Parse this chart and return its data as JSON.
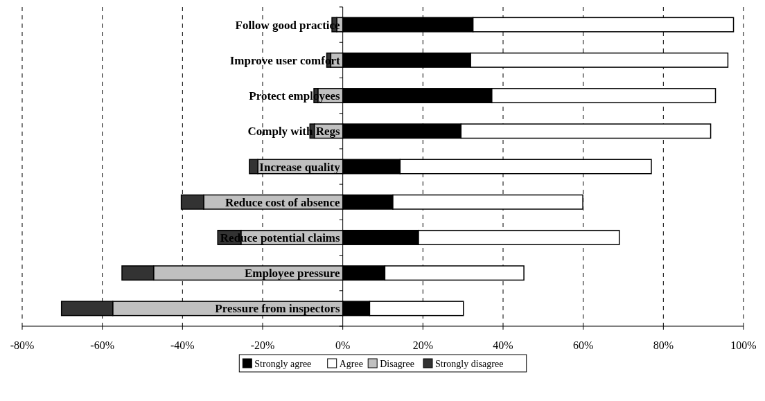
{
  "chart_data": {
    "type": "bar",
    "orientation": "horizontal",
    "stacked": true,
    "grid": "x",
    "legend": "bottom",
    "categories": [
      "Follow good practice",
      "Improve user comfort",
      "Protect employees",
      "Comply with Regs",
      "Increase quality",
      "Reduce cost of absence",
      "Reduce potential claims",
      "Employee pressure",
      "Pressure from inspectors"
    ],
    "series": [
      {
        "name": "Strongly agree",
        "color": "#000000",
        "values": [
          32.5,
          31.9,
          37.2,
          29.5,
          14.3,
          12.5,
          18.9,
          10.5,
          6.7
        ]
      },
      {
        "name": "Agree",
        "color": "#ffffff",
        "values": [
          65,
          64.2,
          55.8,
          62.3,
          62.7,
          47.4,
          50.1,
          34.7,
          23.4
        ]
      },
      {
        "name": "Disagree",
        "color": "#c0c0c0",
        "values": [
          -1.5,
          -3,
          -6.2,
          -7.1,
          -21.2,
          -34.7,
          -25.4,
          -47.2,
          -57.4
        ]
      },
      {
        "name": "Strongly disagree",
        "color": "#333333",
        "values": [
          -1.2,
          -1,
          -1,
          -1.1,
          -2.1,
          -5.6,
          -5.8,
          -7.9,
          -12.8
        ]
      }
    ],
    "xlim": [
      -80,
      100
    ],
    "xticks": [
      {
        "value": -80,
        "label": "-80%"
      },
      {
        "value": -60,
        "label": "-60%"
      },
      {
        "value": -40,
        "label": "-40%"
      },
      {
        "value": -20,
        "label": "-20%"
      },
      {
        "value": 0,
        "label": "0%"
      },
      {
        "value": 20,
        "label": "20%"
      },
      {
        "value": 40,
        "label": "40%"
      },
      {
        "value": 60,
        "label": "60%"
      },
      {
        "value": 80,
        "label": "80%"
      },
      {
        "value": 100,
        "label": "100%"
      }
    ]
  }
}
